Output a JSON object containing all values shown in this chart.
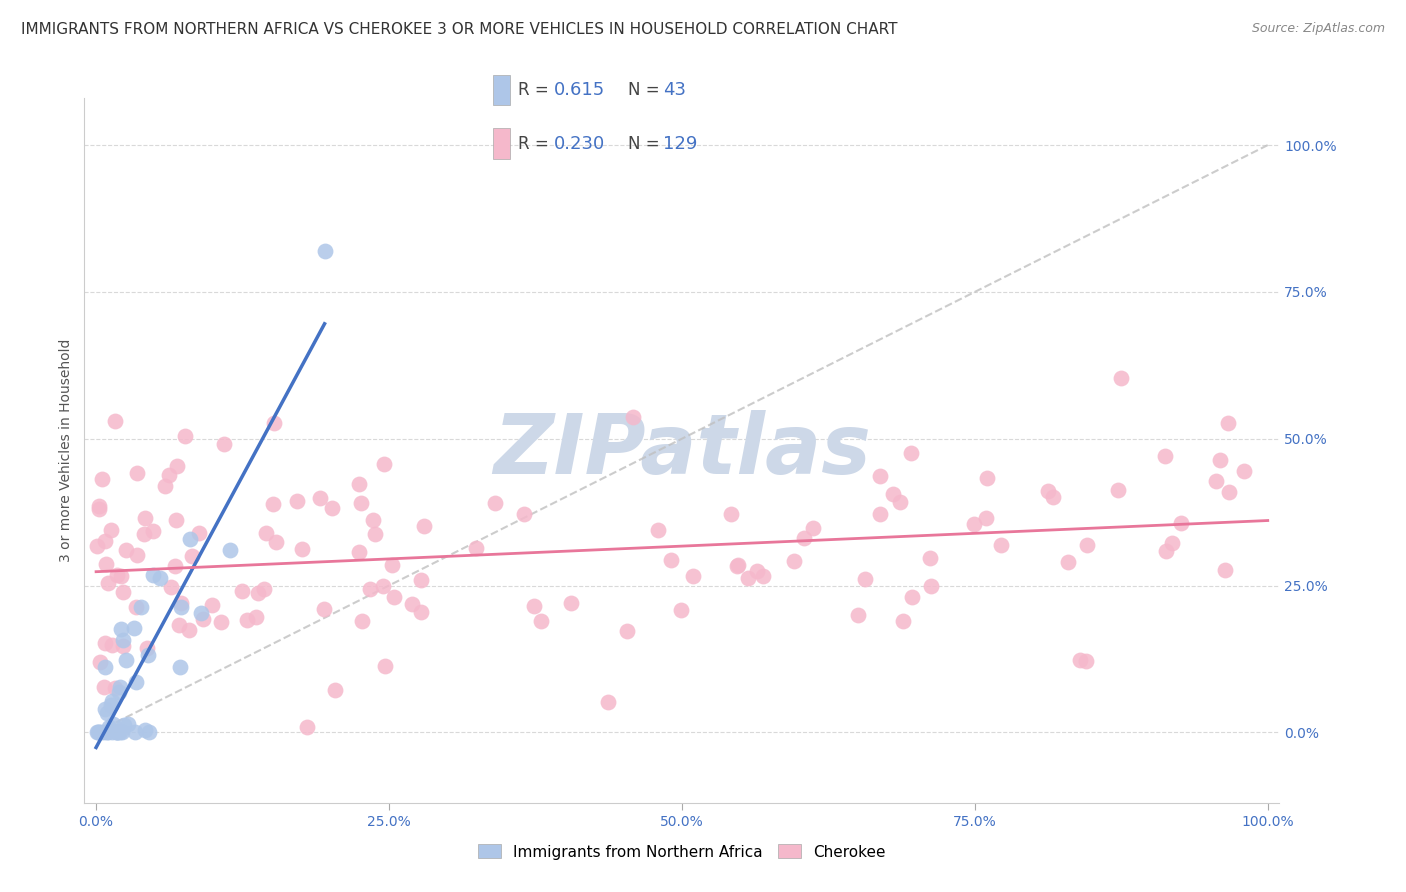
{
  "title": "IMMIGRANTS FROM NORTHERN AFRICA VS CHEROKEE 3 OR MORE VEHICLES IN HOUSEHOLD CORRELATION CHART",
  "source": "Source: ZipAtlas.com",
  "ylabel": "3 or more Vehicles in Household",
  "r_blue": "0.615",
  "n_blue": "43",
  "r_pink": "0.230",
  "n_pink": "129",
  "blue_dot_color": "#aec6e8",
  "pink_dot_color": "#f5b8cb",
  "blue_line_color": "#4472c4",
  "pink_line_color": "#e8769a",
  "dashed_line_color": "#c0c0c0",
  "tick_color": "#4472c4",
  "label_blue": "Immigrants from Northern Africa",
  "label_pink": "Cherokee",
  "legend_r_n_color": "#4472c4",
  "watermark_text": "ZIPatlas",
  "watermark_color": "#cdd8e8",
  "title_fontsize": 11,
  "tick_fontsize": 10,
  "legend_value_fontsize": 13,
  "source_fontsize": 9
}
